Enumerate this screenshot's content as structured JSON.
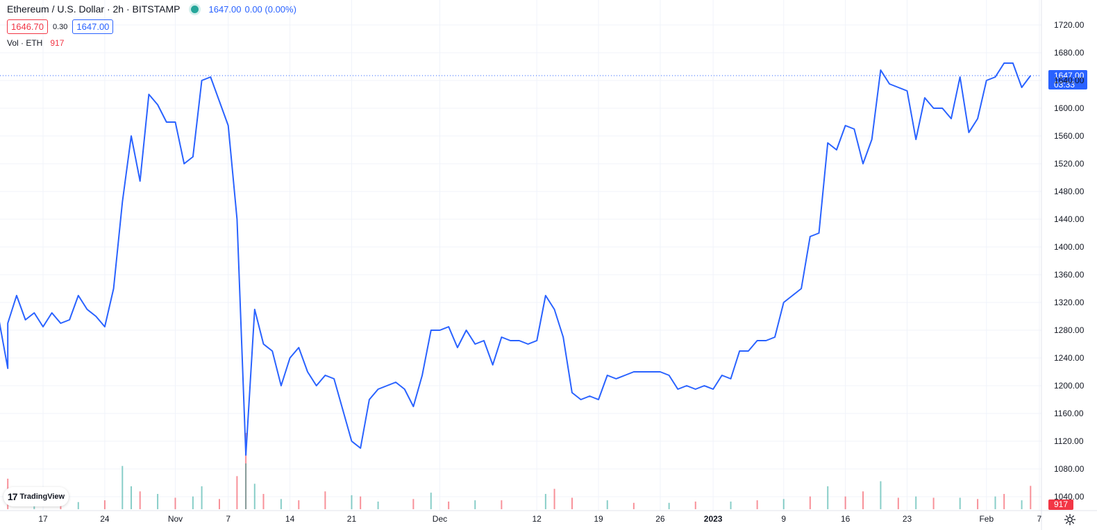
{
  "legend": {
    "title": "Ethereum / U.S. Dollar · 2h · BITSTAMP",
    "last_price": "1647.00",
    "change": "0.00 (0.00%)",
    "bid": "1646.70",
    "spread": "0.30",
    "ask": "1647.00",
    "volume_label": "Vol · ETH",
    "volume_value": "917"
  },
  "branding": {
    "logo_text": "TradingView"
  },
  "price_tag": {
    "price": "1647.00",
    "countdown": "03:33"
  },
  "volume_tag": "917",
  "colors": {
    "line": "#2962ff",
    "up_volume": "#26a69a",
    "down_volume": "#f23645",
    "grid": "#f0f3fa",
    "axis_text": "#131722"
  },
  "chart_data": {
    "type": "line",
    "ylim": [
      1020,
      1740
    ],
    "y_ticks": [
      1720,
      1680,
      1640,
      1600,
      1560,
      1520,
      1480,
      1440,
      1400,
      1360,
      1320,
      1280,
      1240,
      1200,
      1160,
      1120,
      1080,
      1040
    ],
    "x_tick_labels": [
      {
        "label": "17",
        "date": "2022-10-17"
      },
      {
        "label": "24",
        "date": "2022-10-24"
      },
      {
        "label": "Nov",
        "date": "2022-11-01"
      },
      {
        "label": "7",
        "date": "2022-11-07"
      },
      {
        "label": "14",
        "date": "2022-11-14"
      },
      {
        "label": "21",
        "date": "2022-11-21"
      },
      {
        "label": "Dec",
        "date": "2022-12-01"
      },
      {
        "label": "12",
        "date": "2022-12-12"
      },
      {
        "label": "19",
        "date": "2022-12-19"
      },
      {
        "label": "26",
        "date": "2022-12-26"
      },
      {
        "label": "2023",
        "date": "2023-01-01",
        "bold": true
      },
      {
        "label": "9",
        "date": "2023-01-09"
      },
      {
        "label": "16",
        "date": "2023-01-16"
      },
      {
        "label": "23",
        "date": "2023-01-23"
      },
      {
        "label": "Feb",
        "date": "2023-02-01"
      },
      {
        "label": "7",
        "date": "2023-02-07"
      }
    ],
    "series": [
      {
        "points": [
          [
            "2022-10-12",
            1295
          ],
          [
            "2022-10-13",
            1225
          ],
          [
            "2022-10-13",
            1290
          ],
          [
            "2022-10-14",
            1330
          ],
          [
            "2022-10-15",
            1295
          ],
          [
            "2022-10-16",
            1305
          ],
          [
            "2022-10-17",
            1285
          ],
          [
            "2022-10-18",
            1305
          ],
          [
            "2022-10-19",
            1290
          ],
          [
            "2022-10-20",
            1295
          ],
          [
            "2022-10-21",
            1330
          ],
          [
            "2022-10-22",
            1310
          ],
          [
            "2022-10-23",
            1300
          ],
          [
            "2022-10-24",
            1285
          ],
          [
            "2022-10-25",
            1340
          ],
          [
            "2022-10-26",
            1465
          ],
          [
            "2022-10-27",
            1560
          ],
          [
            "2022-10-28",
            1495
          ],
          [
            "2022-10-29",
            1620
          ],
          [
            "2022-10-30",
            1605
          ],
          [
            "2022-10-31",
            1580
          ],
          [
            "2022-11-01",
            1580
          ],
          [
            "2022-11-02",
            1520
          ],
          [
            "2022-11-03",
            1530
          ],
          [
            "2022-11-04",
            1640
          ],
          [
            "2022-11-05",
            1645
          ],
          [
            "2022-11-06",
            1610
          ],
          [
            "2022-11-07",
            1575
          ],
          [
            "2022-11-08",
            1440
          ],
          [
            "2022-11-09",
            1100
          ],
          [
            "2022-11-10",
            1310
          ],
          [
            "2022-11-11",
            1260
          ],
          [
            "2022-11-12",
            1250
          ],
          [
            "2022-11-13",
            1200
          ],
          [
            "2022-11-14",
            1240
          ],
          [
            "2022-11-15",
            1255
          ],
          [
            "2022-11-16",
            1220
          ],
          [
            "2022-11-17",
            1200
          ],
          [
            "2022-11-18",
            1215
          ],
          [
            "2022-11-19",
            1210
          ],
          [
            "2022-11-20",
            1165
          ],
          [
            "2022-11-21",
            1120
          ],
          [
            "2022-11-22",
            1110
          ],
          [
            "2022-11-23",
            1180
          ],
          [
            "2022-11-24",
            1195
          ],
          [
            "2022-11-25",
            1200
          ],
          [
            "2022-11-26",
            1205
          ],
          [
            "2022-11-27",
            1195
          ],
          [
            "2022-11-28",
            1170
          ],
          [
            "2022-11-29",
            1215
          ],
          [
            "2022-11-30",
            1280
          ],
          [
            "2022-12-01",
            1280
          ],
          [
            "2022-12-02",
            1285
          ],
          [
            "2022-12-03",
            1255
          ],
          [
            "2022-12-04",
            1280
          ],
          [
            "2022-12-05",
            1260
          ],
          [
            "2022-12-06",
            1265
          ],
          [
            "2022-12-07",
            1230
          ],
          [
            "2022-12-08",
            1270
          ],
          [
            "2022-12-09",
            1265
          ],
          [
            "2022-12-10",
            1265
          ],
          [
            "2022-12-11",
            1260
          ],
          [
            "2022-12-12",
            1265
          ],
          [
            "2022-12-13",
            1330
          ],
          [
            "2022-12-14",
            1310
          ],
          [
            "2022-12-15",
            1270
          ],
          [
            "2022-12-16",
            1190
          ],
          [
            "2022-12-17",
            1180
          ],
          [
            "2022-12-18",
            1185
          ],
          [
            "2022-12-19",
            1180
          ],
          [
            "2022-12-20",
            1215
          ],
          [
            "2022-12-21",
            1210
          ],
          [
            "2022-12-22",
            1215
          ],
          [
            "2022-12-23",
            1220
          ],
          [
            "2022-12-24",
            1220
          ],
          [
            "2022-12-25",
            1220
          ],
          [
            "2022-12-26",
            1220
          ],
          [
            "2022-12-27",
            1215
          ],
          [
            "2022-12-28",
            1195
          ],
          [
            "2022-12-29",
            1200
          ],
          [
            "2022-12-30",
            1195
          ],
          [
            "2022-12-31",
            1200
          ],
          [
            "2023-01-01",
            1195
          ],
          [
            "2023-01-02",
            1215
          ],
          [
            "2023-01-03",
            1210
          ],
          [
            "2023-01-04",
            1250
          ],
          [
            "2023-01-05",
            1250
          ],
          [
            "2023-01-06",
            1265
          ],
          [
            "2023-01-07",
            1265
          ],
          [
            "2023-01-08",
            1270
          ],
          [
            "2023-01-09",
            1320
          ],
          [
            "2023-01-10",
            1330
          ],
          [
            "2023-01-11",
            1340
          ],
          [
            "2023-01-12",
            1415
          ],
          [
            "2023-01-13",
            1420
          ],
          [
            "2023-01-14",
            1550
          ],
          [
            "2023-01-15",
            1540
          ],
          [
            "2023-01-16",
            1575
          ],
          [
            "2023-01-17",
            1570
          ],
          [
            "2023-01-18",
            1520
          ],
          [
            "2023-01-19",
            1555
          ],
          [
            "2023-01-20",
            1655
          ],
          [
            "2023-01-21",
            1635
          ],
          [
            "2023-01-22",
            1630
          ],
          [
            "2023-01-23",
            1625
          ],
          [
            "2023-01-24",
            1555
          ],
          [
            "2023-01-25",
            1615
          ],
          [
            "2023-01-26",
            1600
          ],
          [
            "2023-01-27",
            1600
          ],
          [
            "2023-01-28",
            1585
          ],
          [
            "2023-01-29",
            1645
          ],
          [
            "2023-01-30",
            1565
          ],
          [
            "2023-01-31",
            1585
          ],
          [
            "2023-02-01",
            1640
          ],
          [
            "2023-02-02",
            1645
          ],
          [
            "2023-02-03",
            1665
          ],
          [
            "2023-02-04",
            1665
          ],
          [
            "2023-02-05",
            1630
          ],
          [
            "2023-02-06",
            1647
          ]
        ]
      }
    ],
    "volume": {
      "series_name": "Vol · ETH",
      "last_value": 917,
      "ylim": [
        0,
        3000
      ],
      "bars": [
        [
          "2022-10-13",
          1200,
          "down"
        ],
        [
          "2022-10-16",
          300,
          "up"
        ],
        [
          "2022-10-19",
          250,
          "down"
        ],
        [
          "2022-10-21",
          280,
          "up"
        ],
        [
          "2022-10-24",
          350,
          "down"
        ],
        [
          "2022-10-26",
          1700,
          "up"
        ],
        [
          "2022-10-27",
          900,
          "up"
        ],
        [
          "2022-10-28",
          700,
          "down"
        ],
        [
          "2022-10-30",
          600,
          "up"
        ],
        [
          "2022-11-01",
          450,
          "down"
        ],
        [
          "2022-11-03",
          500,
          "up"
        ],
        [
          "2022-11-04",
          900,
          "up"
        ],
        [
          "2022-11-06",
          400,
          "down"
        ],
        [
          "2022-11-08",
          1300,
          "down"
        ],
        [
          "2022-11-09",
          3000,
          "down"
        ],
        [
          "2022-11-09",
          1800,
          "up"
        ],
        [
          "2022-11-10",
          1000,
          "up"
        ],
        [
          "2022-11-11",
          600,
          "down"
        ],
        [
          "2022-11-13",
          400,
          "up"
        ],
        [
          "2022-11-15",
          350,
          "down"
        ],
        [
          "2022-11-18",
          700,
          "down"
        ],
        [
          "2022-11-21",
          550,
          "up"
        ],
        [
          "2022-11-22",
          500,
          "down"
        ],
        [
          "2022-11-24",
          300,
          "up"
        ],
        [
          "2022-11-28",
          400,
          "down"
        ],
        [
          "2022-11-30",
          650,
          "up"
        ],
        [
          "2022-12-02",
          300,
          "down"
        ],
        [
          "2022-12-05",
          350,
          "up"
        ],
        [
          "2022-12-08",
          350,
          "down"
        ],
        [
          "2022-12-13",
          600,
          "up"
        ],
        [
          "2022-12-14",
          800,
          "down"
        ],
        [
          "2022-12-16",
          450,
          "down"
        ],
        [
          "2022-12-20",
          350,
          "up"
        ],
        [
          "2022-12-23",
          250,
          "down"
        ],
        [
          "2022-12-27",
          250,
          "up"
        ],
        [
          "2022-12-30",
          300,
          "down"
        ],
        [
          "2023-01-03",
          300,
          "up"
        ],
        [
          "2023-01-06",
          350,
          "down"
        ],
        [
          "2023-01-09",
          400,
          "up"
        ],
        [
          "2023-01-12",
          500,
          "down"
        ],
        [
          "2023-01-14",
          900,
          "up"
        ],
        [
          "2023-01-16",
          500,
          "down"
        ],
        [
          "2023-01-18",
          700,
          "down"
        ],
        [
          "2023-01-20",
          1100,
          "up"
        ],
        [
          "2023-01-22",
          450,
          "down"
        ],
        [
          "2023-01-24",
          500,
          "up"
        ],
        [
          "2023-01-26",
          450,
          "down"
        ],
        [
          "2023-01-29",
          450,
          "up"
        ],
        [
          "2023-01-31",
          400,
          "down"
        ],
        [
          "2023-02-02",
          500,
          "up"
        ],
        [
          "2023-02-03",
          600,
          "down"
        ],
        [
          "2023-02-05",
          350,
          "up"
        ],
        [
          "2023-02-06",
          917,
          "down"
        ]
      ]
    },
    "current_price_line": 1647
  }
}
